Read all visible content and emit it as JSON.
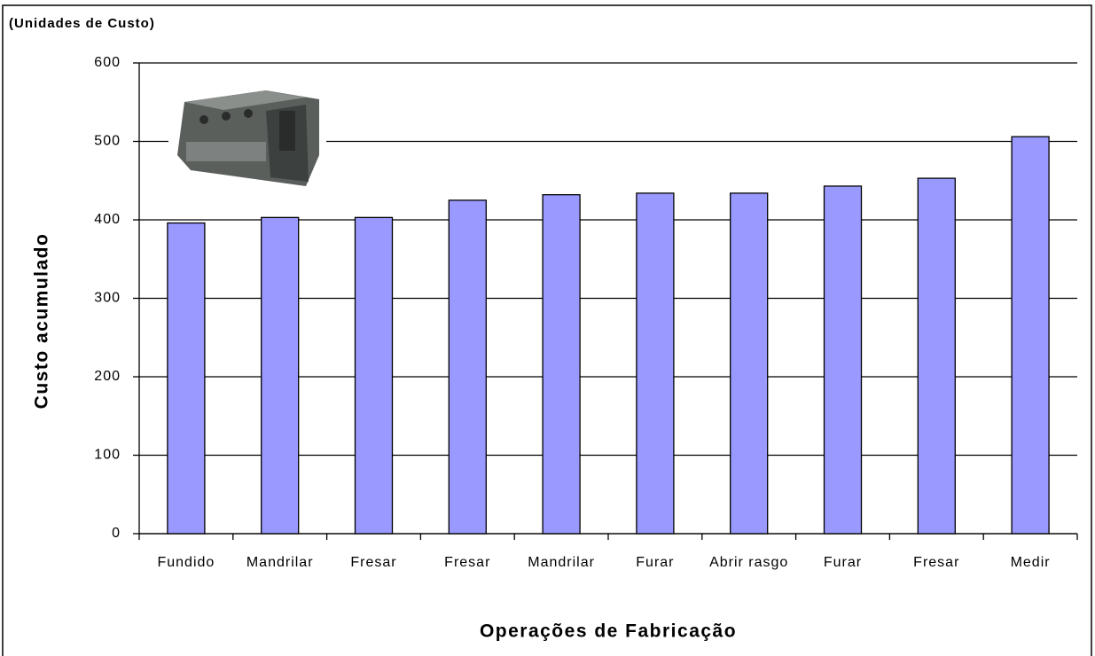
{
  "chart_data": {
    "type": "bar",
    "title": "(Unidades de Custo)",
    "y_label": "Custo acumulado",
    "x_label": "Operações de Fabricação",
    "categories": [
      "Fundido",
      "Mandrilar",
      "Fresar",
      "Fresar",
      "Mandrilar",
      "Furar",
      "Abrir rasgo",
      "Furar",
      "Fresar",
      "Medir"
    ],
    "values": [
      396,
      403,
      403,
      425,
      432,
      434,
      434,
      443,
      453,
      506
    ],
    "color": "#9999ff",
    "ylim": [
      0,
      600
    ],
    "yticks": [
      0,
      100,
      200,
      300,
      400,
      500,
      600
    ],
    "grid": true
  }
}
